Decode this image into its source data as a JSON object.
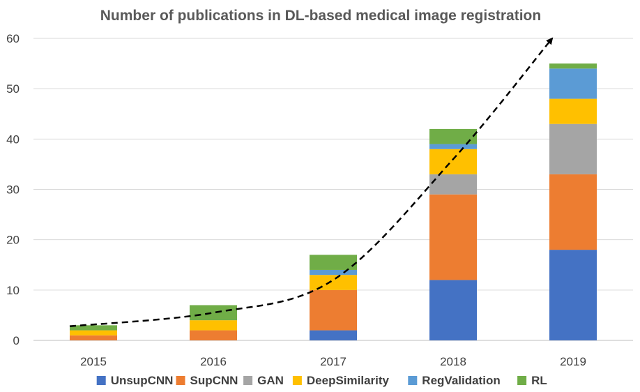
{
  "chart_data": {
    "type": "bar",
    "stacked": true,
    "title": "Number of publications in DL-based medical image registration",
    "xlabel": "",
    "ylabel": "",
    "categories": [
      "2015",
      "2016",
      "2017",
      "2018",
      "2019"
    ],
    "ylim": [
      0,
      60
    ],
    "yticks": [
      "0",
      "10",
      "20",
      "30",
      "40",
      "50",
      "60"
    ],
    "grid": true,
    "legend_position": "bottom",
    "series": [
      {
        "name": "UnsupCNN",
        "color": "#4472c4",
        "values": [
          0,
          0,
          2,
          12,
          18
        ]
      },
      {
        "name": "SupCNN",
        "color": "#ed7d31",
        "values": [
          1,
          2,
          8,
          17,
          15
        ]
      },
      {
        "name": "GAN",
        "color": "#a5a5a5",
        "values": [
          0,
          0,
          0,
          4,
          10
        ]
      },
      {
        "name": "DeepSimilarity",
        "color": "#ffc000",
        "values": [
          1,
          2,
          3,
          5,
          5
        ]
      },
      {
        "name": "RegValidation",
        "color": "#5b9bd5",
        "values": [
          0,
          0,
          1,
          1,
          6
        ]
      },
      {
        "name": "RL",
        "color": "#70ad47",
        "values": [
          1,
          3,
          3,
          3,
          1
        ]
      }
    ],
    "trend": {
      "style": "dashed",
      "color": "#000000",
      "arrow": "end",
      "values": [
        2.8,
        5.5,
        12,
        36,
        60
      ]
    }
  }
}
